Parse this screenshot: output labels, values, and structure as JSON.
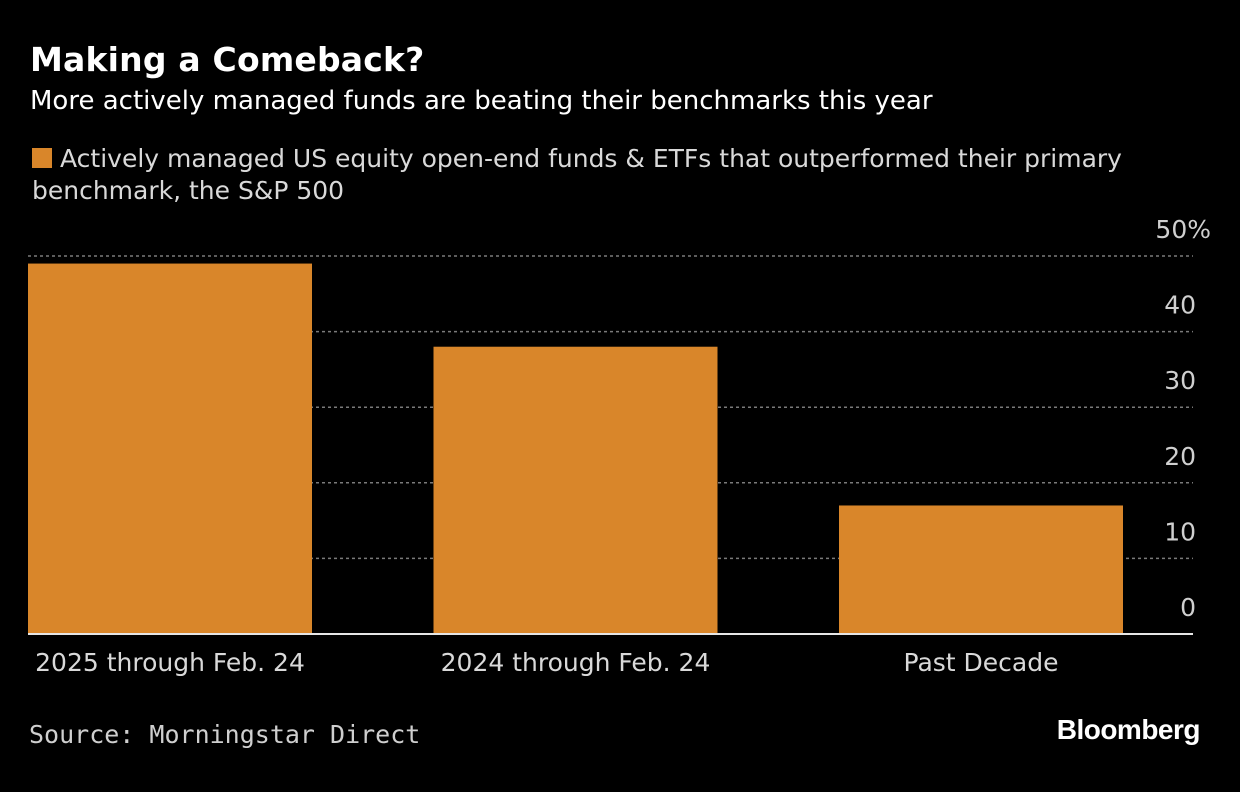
{
  "header": {
    "title": "Making a Comeback?",
    "subtitle": "More actively managed funds are beating their benchmarks this year"
  },
  "legend": {
    "label": "Actively managed US equity open-end funds & ETFs that outperformed their primary benchmark, the S&P 500",
    "color": "#d9862a"
  },
  "footer": {
    "source": "Source: Morningstar Direct",
    "brand": "Bloomberg"
  },
  "chart_data": {
    "type": "bar",
    "title": "Making a Comeback?",
    "subtitle": "More actively managed funds are beating their benchmarks this year",
    "categories": [
      "2025 through Feb. 24",
      "2024 through Feb. 24",
      "Past Decade"
    ],
    "series": [
      {
        "name": "Actively managed US equity open-end funds & ETFs that outperformed their primary benchmark, the S&P 500",
        "values": [
          49,
          38,
          17
        ]
      }
    ],
    "ylim": [
      0,
      50
    ],
    "yticks": [
      0,
      10,
      20,
      30,
      40,
      50
    ],
    "ytick_labels": [
      "0",
      "10",
      "20",
      "30",
      "40",
      "50%"
    ],
    "y_axis_position": "right",
    "grid": true,
    "xlabel": "",
    "ylabel": "",
    "bar_color": "#d9862a",
    "legend_position": "top"
  }
}
